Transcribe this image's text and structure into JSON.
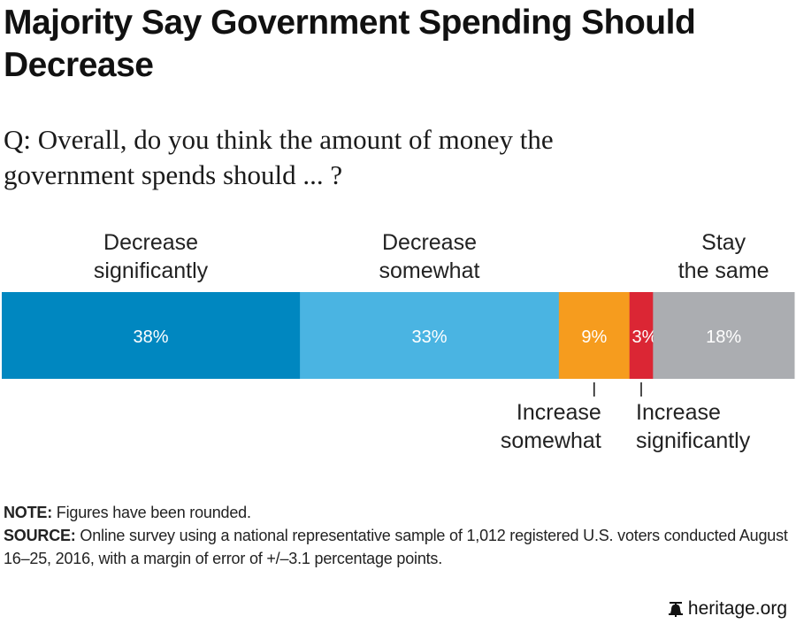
{
  "chart_data": {
    "type": "bar",
    "orientation": "horizontal-stacked",
    "title": "Majority Say Government Spending Should Decrease",
    "subtitle": "Q: Overall, do you think the amount of money the government spends should ... ?",
    "categories": [
      "Decrease significantly",
      "Decrease somewhat",
      "Increase somewhat",
      "Increase significantly",
      "Stay the same"
    ],
    "values": [
      38,
      33,
      9,
      3,
      18
    ],
    "value_labels": [
      "38%",
      "33%",
      "9%",
      "3%",
      "18%"
    ],
    "colors": [
      "#0087c0",
      "#4ab4e2",
      "#f69c1e",
      "#db2634",
      "#abadb1"
    ],
    "label_lines": [
      [
        "Decrease",
        "significantly"
      ],
      [
        "Decrease",
        "somewhat"
      ],
      [
        "Increase",
        "somewhat"
      ],
      [
        "Increase",
        "significantly"
      ],
      [
        "Stay",
        "the same"
      ]
    ],
    "label_placement": [
      "above",
      "above",
      "below",
      "below",
      "above"
    ],
    "xlim": [
      0,
      101
    ],
    "grid": false,
    "legend": "none"
  },
  "note": {
    "label": "NOTE:",
    "text": " Figures have been rounded."
  },
  "source": {
    "label": "SOURCE:",
    "text": " Online survey using a national representative sample of 1,012 registered U.S. voters conducted August 16–25, 2016, with a margin of error of +/–3.1 percentage points."
  },
  "branding": {
    "icon": "liberty-bell-icon",
    "text": "heritage.org"
  }
}
